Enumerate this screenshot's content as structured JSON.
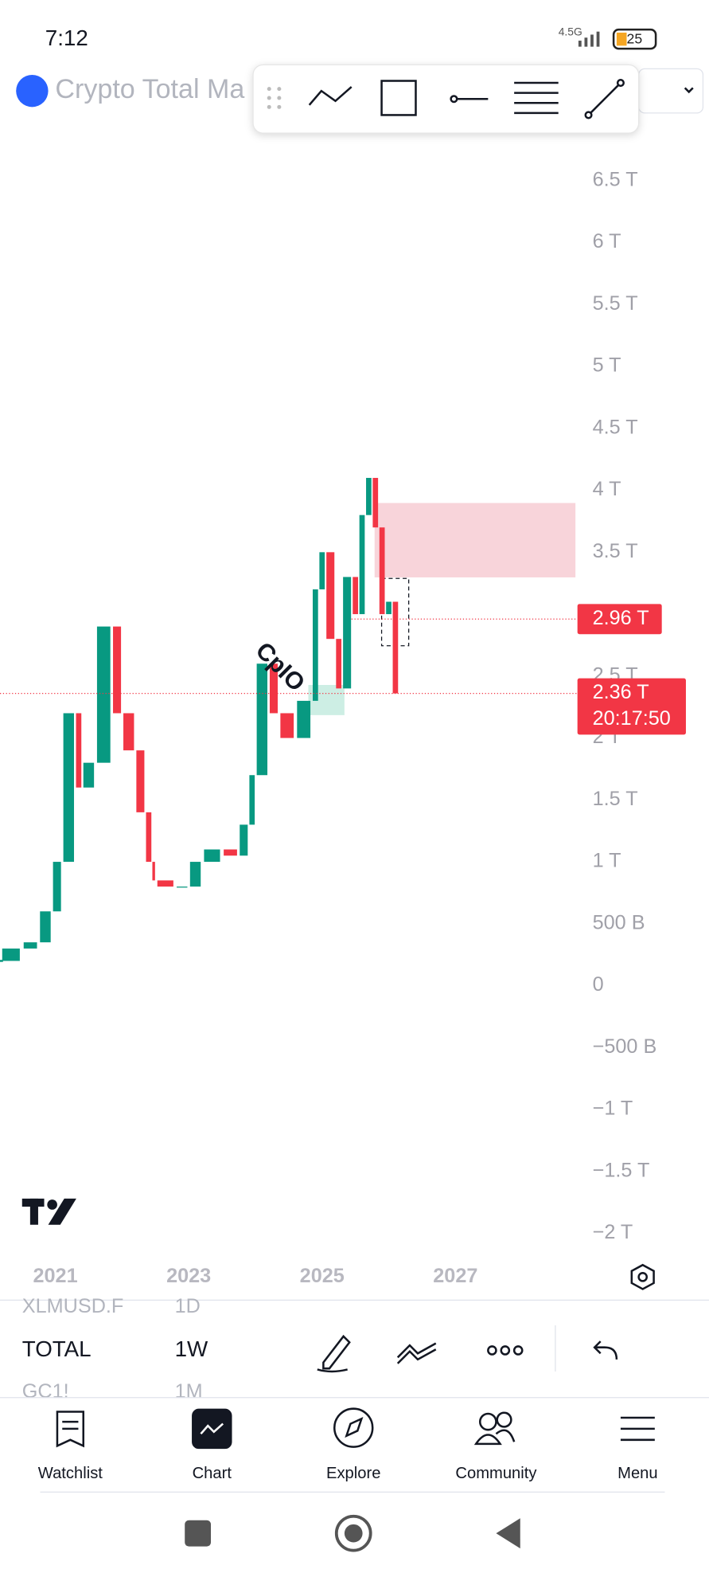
{
  "status_bar": {
    "time": "7:12",
    "network": "4.5G",
    "battery": "25"
  },
  "header": {
    "title": "Crypto Total Ma"
  },
  "chart_data": {
    "type": "candlestick",
    "x": [
      2020.17,
      2020.5,
      2020.75,
      2020.95,
      2021.1,
      2021.3,
      2021.4,
      2021.6,
      2021.85,
      2022.0,
      2022.2,
      2022.35,
      2022.45,
      2022.5,
      2022.8,
      2023.0,
      2023.2,
      2023.5,
      2023.75,
      2023.9,
      2024.0,
      2024.2,
      2024.35,
      2024.6,
      2024.85,
      2024.95,
      2025.05,
      2025.2,
      2025.3,
      2025.45,
      2025.55,
      2025.65,
      2025.75,
      2025.85,
      2025.95,
      2026.05,
      2026.15
    ],
    "values": [
      0.2,
      0.3,
      0.35,
      0.6,
      1.0,
      2.2,
      1.6,
      1.8,
      2.9,
      2.2,
      1.9,
      1.4,
      1.0,
      0.85,
      0.8,
      0.8,
      1.0,
      1.1,
      1.05,
      1.3,
      1.7,
      2.6,
      2.2,
      2.0,
      2.3,
      3.2,
      3.5,
      2.8,
      2.4,
      3.3,
      3.0,
      3.8,
      4.1,
      3.7,
      3.0,
      3.1,
      2.36
    ],
    "up_color": "#089981",
    "down_color": "#f23645",
    "xlim": [
      2020.17,
      2028.83
    ],
    "xticks": [
      2021,
      2023,
      2025,
      2027
    ],
    "ylim": [
      -2.19,
      6.9
    ],
    "yticks": [
      {
        "value": 6.5,
        "label": "6.5 T"
      },
      {
        "value": 6,
        "label": "6 T"
      },
      {
        "value": 5.5,
        "label": "5.5 T"
      },
      {
        "value": 5,
        "label": "5 T"
      },
      {
        "value": 4.5,
        "label": "4.5 T"
      },
      {
        "value": 4,
        "label": "4 T"
      },
      {
        "value": 3.5,
        "label": "3.5 T"
      },
      {
        "value": 2.5,
        "label": "2.5 T"
      },
      {
        "value": 2,
        "label": "2 T"
      },
      {
        "value": 1.5,
        "label": "1.5 T"
      },
      {
        "value": 1,
        "label": "1 T"
      },
      {
        "value": 0.5,
        "label": "500 B"
      },
      0,
      {
        "value": -0.5,
        "label": "−500 B"
      },
      {
        "value": -1,
        "label": "−1 T"
      },
      {
        "value": -1.5,
        "label": "−1.5 T"
      },
      {
        "value": -2,
        "label": "−2 T"
      }
    ],
    "price_lines": [
      {
        "value": 2.96,
        "label": "2.96 T"
      },
      {
        "value": 2.36,
        "label": "2.36 T",
        "countdown": "20:17:50"
      }
    ],
    "annotation": "CpIO"
  },
  "symbols": [
    [
      "XLMUSD.F",
      "1D"
    ],
    [
      "TOTAL",
      "1W"
    ],
    [
      "GC1!",
      "1M"
    ]
  ],
  "nav": [
    "Watchlist",
    "Chart",
    "Explore",
    "Community",
    "Menu"
  ]
}
